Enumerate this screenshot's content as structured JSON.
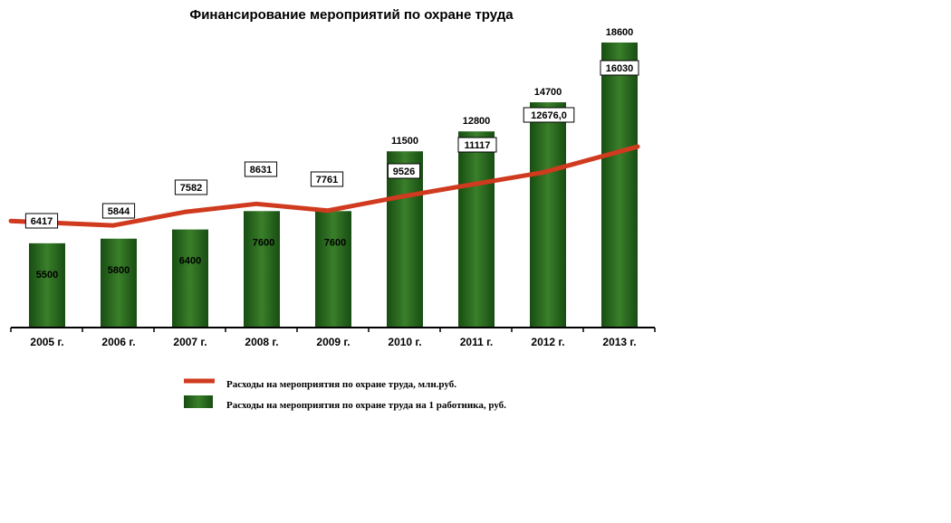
{
  "chart_data": {
    "type": "bar",
    "title": "Финансирование мероприятий по охране труда",
    "categories": [
      "2005 г.",
      "2006 г.",
      "2007 г.",
      "2008 г.",
      "2009 г.",
      "2010 г.",
      "2011 г.",
      "2012 г.",
      "2013 г."
    ],
    "series": [
      {
        "name": "Расходы на мероприятия по охране труда на 1 работника, руб.",
        "type": "bar",
        "values": [
          5500,
          5800,
          6400,
          7600,
          7600,
          11500,
          12800,
          14700,
          18600
        ],
        "labels": [
          "5500",
          "5800",
          "6400",
          "7600",
          "7600",
          "11500",
          "12800",
          "14700",
          "18600"
        ],
        "label_position": [
          "inside",
          "inside",
          "inside",
          "inside",
          "inside",
          "above",
          "above",
          "above",
          "above"
        ],
        "color": "#2e6b1e"
      },
      {
        "name": "Расходы на мероприятия по охране труда, млн.руб.",
        "type": "line",
        "values": [
          6417,
          5844,
          7582,
          8631,
          7761,
          9526,
          11117,
          12676.0,
          16030
        ],
        "labels": [
          "6417",
          "5844",
          "7582",
          "8631",
          "7761",
          "9526",
          "11117",
          "12676,0",
          "16030"
        ],
        "color": "#d03a1e"
      }
    ],
    "legend_position": "bottom",
    "grid": false
  }
}
